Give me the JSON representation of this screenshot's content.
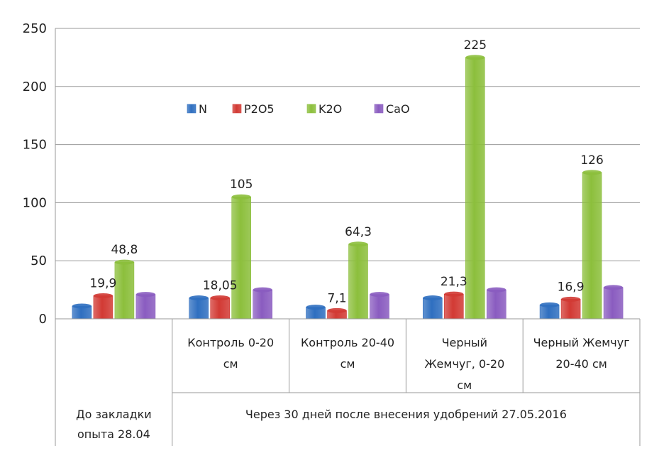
{
  "chart_data": {
    "type": "bar",
    "title": "",
    "xlabel": "",
    "ylabel": "",
    "ylim": [
      0,
      250
    ],
    "yticks": [
      "0",
      "50",
      "100",
      "150",
      "200",
      "250"
    ],
    "grid": true,
    "legend_position": "top-center",
    "categories": [
      [
        ""
      ],
      [
        "Контроль 0-20",
        "см"
      ],
      [
        "Контроль 20-40",
        "см"
      ],
      [
        "Черный",
        "Жемчуг, 0-20",
        "см"
      ],
      [
        "Черный Жемчуг",
        "20-40 см"
      ]
    ],
    "groups": [
      [
        "До закладки",
        "опыта 28.04"
      ],
      [
        "Через 30 дней после внесения удобрений 27.05.2016"
      ]
    ],
    "series": [
      {
        "name": "N",
        "color": "#2f6fc0",
        "values": [
          11,
          18,
          10,
          18,
          12
        ]
      },
      {
        "name": "P2O5",
        "color": "#d23a34",
        "values": [
          19.9,
          18.05,
          7.1,
          21.3,
          16.9
        ]
      },
      {
        "name": "K2O",
        "color": "#8cbf3c",
        "values": [
          48.8,
          105,
          64.3,
          225,
          126
        ]
      },
      {
        "name": "CaO",
        "color": "#8a5cc0",
        "values": [
          21,
          25,
          21,
          25,
          27
        ]
      }
    ],
    "data_labels": [
      [
        "",
        "",
        "",
        "",
        ""
      ],
      [
        "19,9",
        "18,05",
        "7,1",
        "21,3",
        "16,9"
      ],
      [
        "48,8",
        "105",
        "64,3",
        "225",
        "126"
      ],
      [
        "",
        "",
        "",
        "",
        ""
      ]
    ]
  }
}
